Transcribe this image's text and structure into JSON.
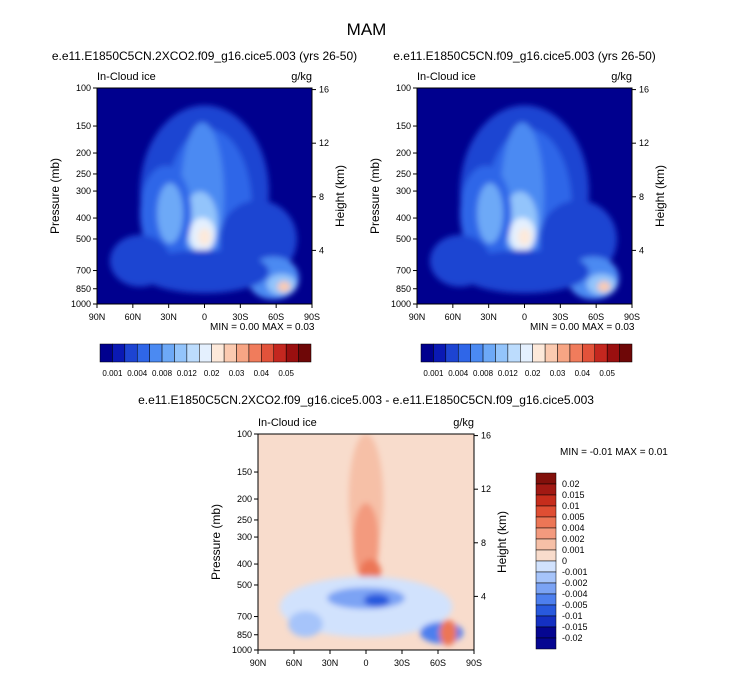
{
  "page": {
    "title": "MAM"
  },
  "colors": {
    "abs_scale": [
      "#00008e",
      "#0a19b4",
      "#1d44d2",
      "#2f66e8",
      "#4b8af2",
      "#6da9f7",
      "#93c4fb",
      "#bcdcfd",
      "#e4f0fe",
      "#fde9da",
      "#fbcab0",
      "#f7a584",
      "#f07c5c",
      "#e2523a",
      "#c4271f",
      "#9a0f0f",
      "#6e0707"
    ],
    "diff_scale": [
      "#050691",
      "#1430c2",
      "#2859dd",
      "#4d7fee",
      "#7ba3f4",
      "#a6c4fa",
      "#d1e2fd",
      "#f8dccc",
      "#f6c0a7",
      "#f39a7e",
      "#ec7656",
      "#df4e33",
      "#c62d1c",
      "#a11913",
      "#82100b"
    ]
  },
  "chart_data": [
    {
      "type": "heatmap",
      "title": "e.e11.E1850C5CN.2XCO2.f09_g16.cice5.003 (yrs 26-50)",
      "left_label": "In-Cloud ice",
      "right_label": "g/kg",
      "ylabel": "Pressure (mb)",
      "ylabel_right": "Height (km)",
      "x_ticks": [
        "90N",
        "60N",
        "30N",
        "0",
        "30S",
        "60S",
        "90S"
      ],
      "y_ticks": [
        100,
        150,
        200,
        250,
        300,
        400,
        500,
        700,
        850,
        1000
      ],
      "y_ticks_right": [
        16,
        12,
        8,
        4
      ],
      "stats": "MIN =  0.00   MAX =  0.03",
      "colorbar_labels": [
        "0.001",
        "0.004",
        "0.008",
        "0.012",
        "0.02",
        "0.03",
        "0.04",
        "0.05"
      ]
    },
    {
      "type": "heatmap",
      "title": "e.e11.E1850C5CN.f09_g16.cice5.003 (yrs 26-50)",
      "left_label": "In-Cloud ice",
      "right_label": "g/kg",
      "ylabel": "Pressure (mb)",
      "ylabel_right": "Height (km)",
      "x_ticks": [
        "90N",
        "60N",
        "30N",
        "0",
        "30S",
        "60S",
        "90S"
      ],
      "y_ticks": [
        100,
        150,
        200,
        250,
        300,
        400,
        500,
        700,
        850,
        1000
      ],
      "y_ticks_right": [
        16,
        12,
        8,
        4
      ],
      "stats": "MIN =  0.00   MAX =  0.03",
      "colorbar_labels": [
        "0.001",
        "0.004",
        "0.008",
        "0.012",
        "0.02",
        "0.03",
        "0.04",
        "0.05"
      ]
    },
    {
      "type": "heatmap",
      "title": "e.e11.E1850C5CN.2XCO2.f09_g16.cice5.003 - e.e11.E1850C5CN.f09_g16.cice5.003",
      "left_label": "In-Cloud ice",
      "right_label": "g/kg",
      "ylabel": "Pressure (mb)",
      "ylabel_right": "Height (km)",
      "x_ticks": [
        "90N",
        "60N",
        "30N",
        "0",
        "30S",
        "60S",
        "90S"
      ],
      "y_ticks": [
        100,
        150,
        200,
        250,
        300,
        400,
        500,
        700,
        850,
        1000
      ],
      "y_ticks_right": [
        16,
        12,
        8,
        4
      ],
      "stats": "MIN = -0.01   MAX =  0.01",
      "colorbar_labels": [
        "0.02",
        "0.015",
        "0.01",
        "0.005",
        "0.004",
        "0.002",
        "0.001",
        "0",
        "-0.001",
        "-0.002",
        "-0.004",
        "-0.005",
        "-0.01",
        "-0.015",
        "-0.02"
      ]
    }
  ]
}
